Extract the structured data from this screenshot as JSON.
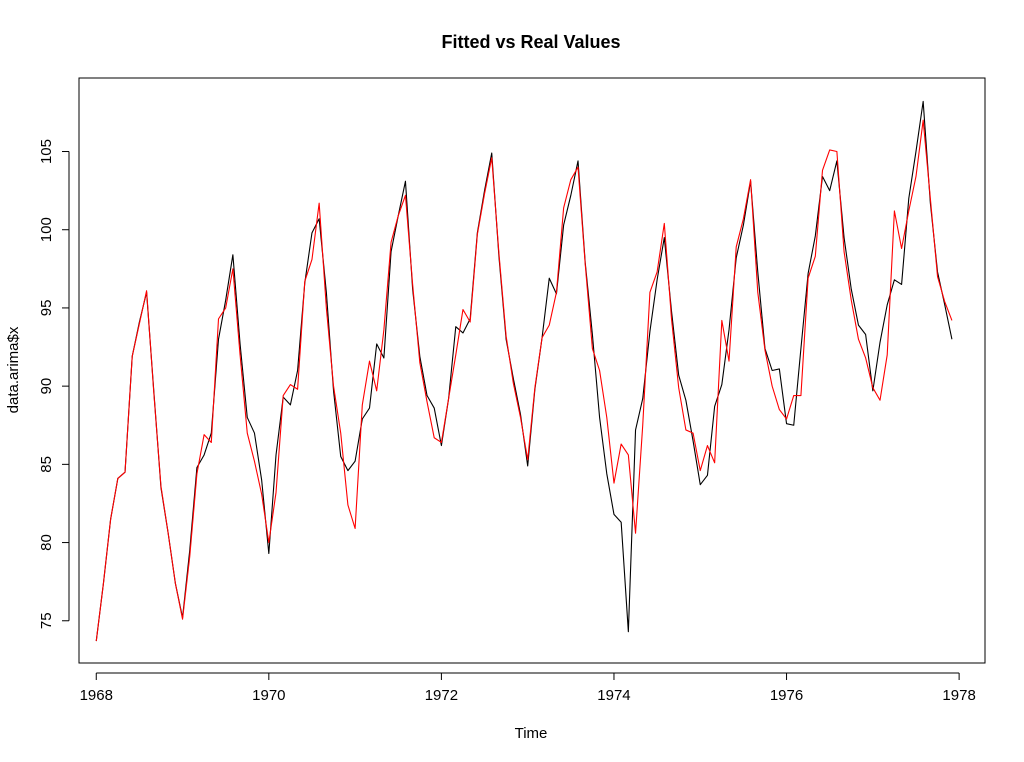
{
  "chart_data": {
    "type": "line",
    "title": "Fitted vs Real Values",
    "xlabel": "Time",
    "ylabel": "data.arima$x",
    "xlim": [
      1967.8,
      1978.3
    ],
    "ylim": [
      72.3,
      109.7
    ],
    "x_ticks": [
      1968,
      1970,
      1972,
      1974,
      1976,
      1978
    ],
    "x_tick_labels": [
      "1968",
      "1970",
      "1972",
      "1974",
      "1976",
      "1978"
    ],
    "y_ticks": [
      75,
      80,
      85,
      90,
      95,
      100,
      105
    ],
    "y_tick_labels": [
      "75",
      "80",
      "85",
      "90",
      "95",
      "100",
      "105"
    ],
    "grid": false,
    "legend": "none",
    "x_start": 1968,
    "x_step": 0.08333333,
    "series": [
      {
        "color": "#000000",
        "values": [
          73.7,
          77.4,
          81.5,
          84.1,
          84.5,
          91.9,
          94.1,
          96.0,
          89.7,
          83.5,
          80.6,
          77.4,
          75.2,
          79.5,
          84.8,
          85.6,
          87.0,
          93.0,
          95.5,
          98.4,
          92.7,
          88.0,
          87.0,
          84.0,
          79.3,
          85.6,
          89.3,
          88.8,
          91.0,
          96.6,
          99.8,
          100.7,
          96.0,
          89.7,
          85.5,
          84.6,
          85.2,
          87.9,
          88.6,
          92.7,
          91.8,
          98.6,
          100.9,
          103.1,
          96.2,
          91.9,
          89.4,
          88.6,
          86.2,
          89.2,
          93.8,
          93.4,
          94.3,
          99.8,
          102.5,
          104.9,
          98.3,
          93.0,
          90.5,
          88.2,
          84.9,
          89.8,
          93.1,
          96.9,
          95.9,
          100.3,
          102.2,
          104.4,
          97.9,
          93.3,
          88.0,
          84.4,
          81.8,
          81.3,
          74.3,
          87.2,
          89.2,
          93.5,
          96.8,
          99.5,
          94.8,
          90.7,
          89.1,
          86.5,
          83.7,
          84.3,
          88.7,
          90.1,
          93.6,
          98.2,
          100.3,
          103.1,
          97.3,
          92.4,
          91.0,
          91.1,
          87.6,
          87.5,
          92.4,
          97.2,
          99.6,
          103.4,
          102.5,
          104.4,
          99.5,
          96.2,
          93.9,
          93.3,
          89.7,
          92.8,
          95.2,
          96.8,
          96.5,
          102.0,
          105.0,
          108.2,
          101.7,
          97.3,
          95.2,
          93.0
        ]
      },
      {
        "color": "#ff0000",
        "values": [
          73.7,
          77.4,
          81.5,
          84.1,
          84.5,
          91.9,
          94.0,
          96.1,
          89.6,
          83.6,
          80.6,
          77.4,
          75.1,
          79.1,
          84.4,
          86.9,
          86.4,
          94.3,
          95.0,
          97.5,
          92.0,
          87.0,
          85.2,
          83.1,
          80.0,
          83.2,
          89.4,
          90.1,
          89.8,
          96.7,
          98.1,
          101.7,
          95.0,
          90.0,
          87.0,
          82.4,
          80.9,
          88.8,
          91.6,
          89.7,
          93.6,
          99.2,
          100.9,
          102.2,
          96.5,
          91.5,
          89.0,
          86.7,
          86.4,
          89.2,
          92.0,
          94.9,
          94.1,
          99.7,
          102.3,
          104.6,
          98.5,
          93.2,
          90.2,
          88.0,
          85.3,
          89.9,
          93.1,
          93.9,
          96.0,
          101.4,
          103.2,
          104.0,
          97.8,
          92.4,
          91.0,
          88.0,
          83.8,
          86.3,
          85.6,
          80.6,
          87.5,
          96.0,
          97.3,
          100.4,
          94.3,
          89.9,
          87.2,
          87.0,
          84.6,
          86.2,
          85.1,
          94.2,
          91.6,
          98.9,
          100.7,
          103.2,
          96.0,
          92.3,
          90.0,
          88.5,
          87.9,
          89.4,
          89.4,
          96.9,
          98.3,
          103.8,
          105.1,
          105.0,
          98.6,
          95.5,
          93.0,
          91.8,
          89.9,
          89.1,
          92.0,
          101.2,
          98.8,
          101.2,
          103.4,
          107.0,
          102.0,
          97.0,
          95.4,
          94.2
        ]
      }
    ]
  }
}
